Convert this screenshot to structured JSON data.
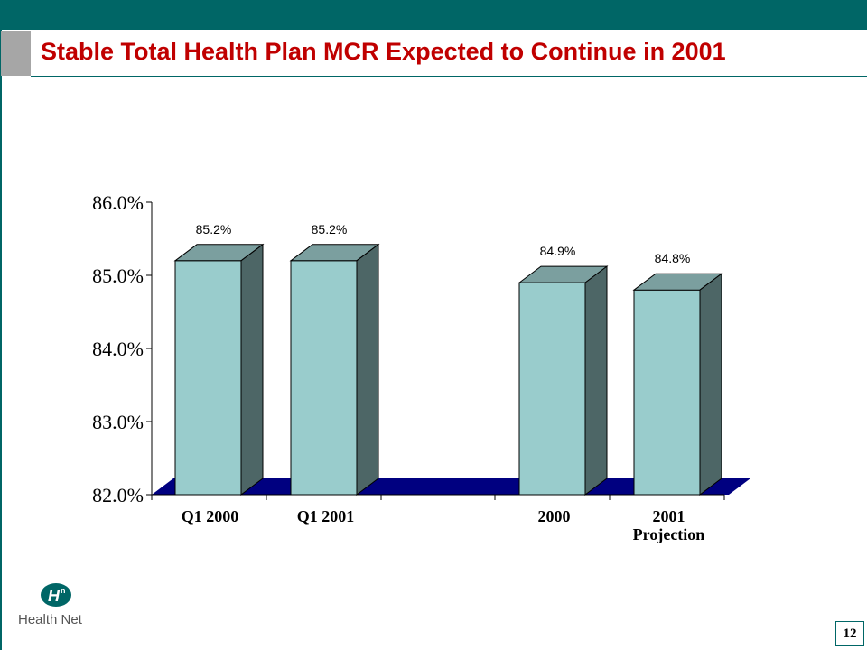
{
  "slide": {
    "title": "Stable Total Health Plan MCR Expected to Continue in 2001",
    "page_number": "12",
    "logo_text": "Health Net"
  },
  "colors": {
    "band": "#006666",
    "title": "#c00000",
    "bar_front": "#99cccc",
    "bar_top": "#7b9f9f",
    "bar_side": "#4d6666",
    "floor": "#000080"
  },
  "chart_data": {
    "type": "bar",
    "style": "3d",
    "categories": [
      "Q1 2000",
      "Q1 2001",
      "2000",
      "2001\nProjection"
    ],
    "category_labels": [
      [
        "Q1 2000"
      ],
      [
        "Q1 2001"
      ],
      [
        "2000"
      ],
      [
        "2001",
        "Projection"
      ]
    ],
    "values": [
      85.2,
      85.2,
      84.9,
      84.8
    ],
    "data_labels": [
      "85.2%",
      "85.2%",
      "84.9%",
      "84.8%"
    ],
    "ylim": [
      82.0,
      86.0
    ],
    "yticks": [
      82.0,
      83.0,
      84.0,
      85.0,
      86.0
    ],
    "ytick_labels": [
      "82.0%",
      "83.0%",
      "84.0%",
      "85.0%",
      "86.0%"
    ],
    "title": "",
    "xlabel": "",
    "ylabel": "",
    "grid": false,
    "legend": "none"
  }
}
